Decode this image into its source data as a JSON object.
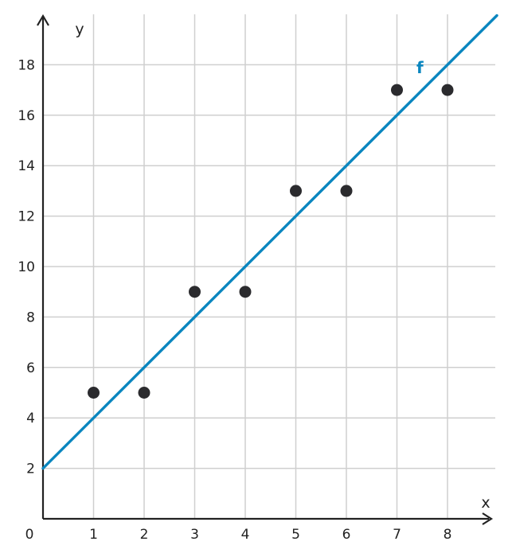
{
  "chart_data": {
    "type": "scatter",
    "xlabel": "x",
    "ylabel": "y",
    "origin_label": "0",
    "xlim": [
      0,
      9
    ],
    "ylim": [
      0,
      20
    ],
    "x_ticks": [
      1,
      2,
      3,
      4,
      5,
      6,
      7,
      8
    ],
    "y_ticks": [
      2,
      4,
      6,
      8,
      10,
      12,
      14,
      16,
      18
    ],
    "grid": true,
    "points": [
      {
        "x": 1,
        "y": 5
      },
      {
        "x": 2,
        "y": 5
      },
      {
        "x": 3,
        "y": 9
      },
      {
        "x": 4,
        "y": 9
      },
      {
        "x": 5,
        "y": 13
      },
      {
        "x": 6,
        "y": 13
      },
      {
        "x": 7,
        "y": 17
      },
      {
        "x": 8,
        "y": 17
      }
    ],
    "line": {
      "name": "f",
      "slope": 2,
      "intercept": 2,
      "color": "#0a86bf",
      "label_x": 7.8
    },
    "point_color": "#2b2b2e"
  }
}
